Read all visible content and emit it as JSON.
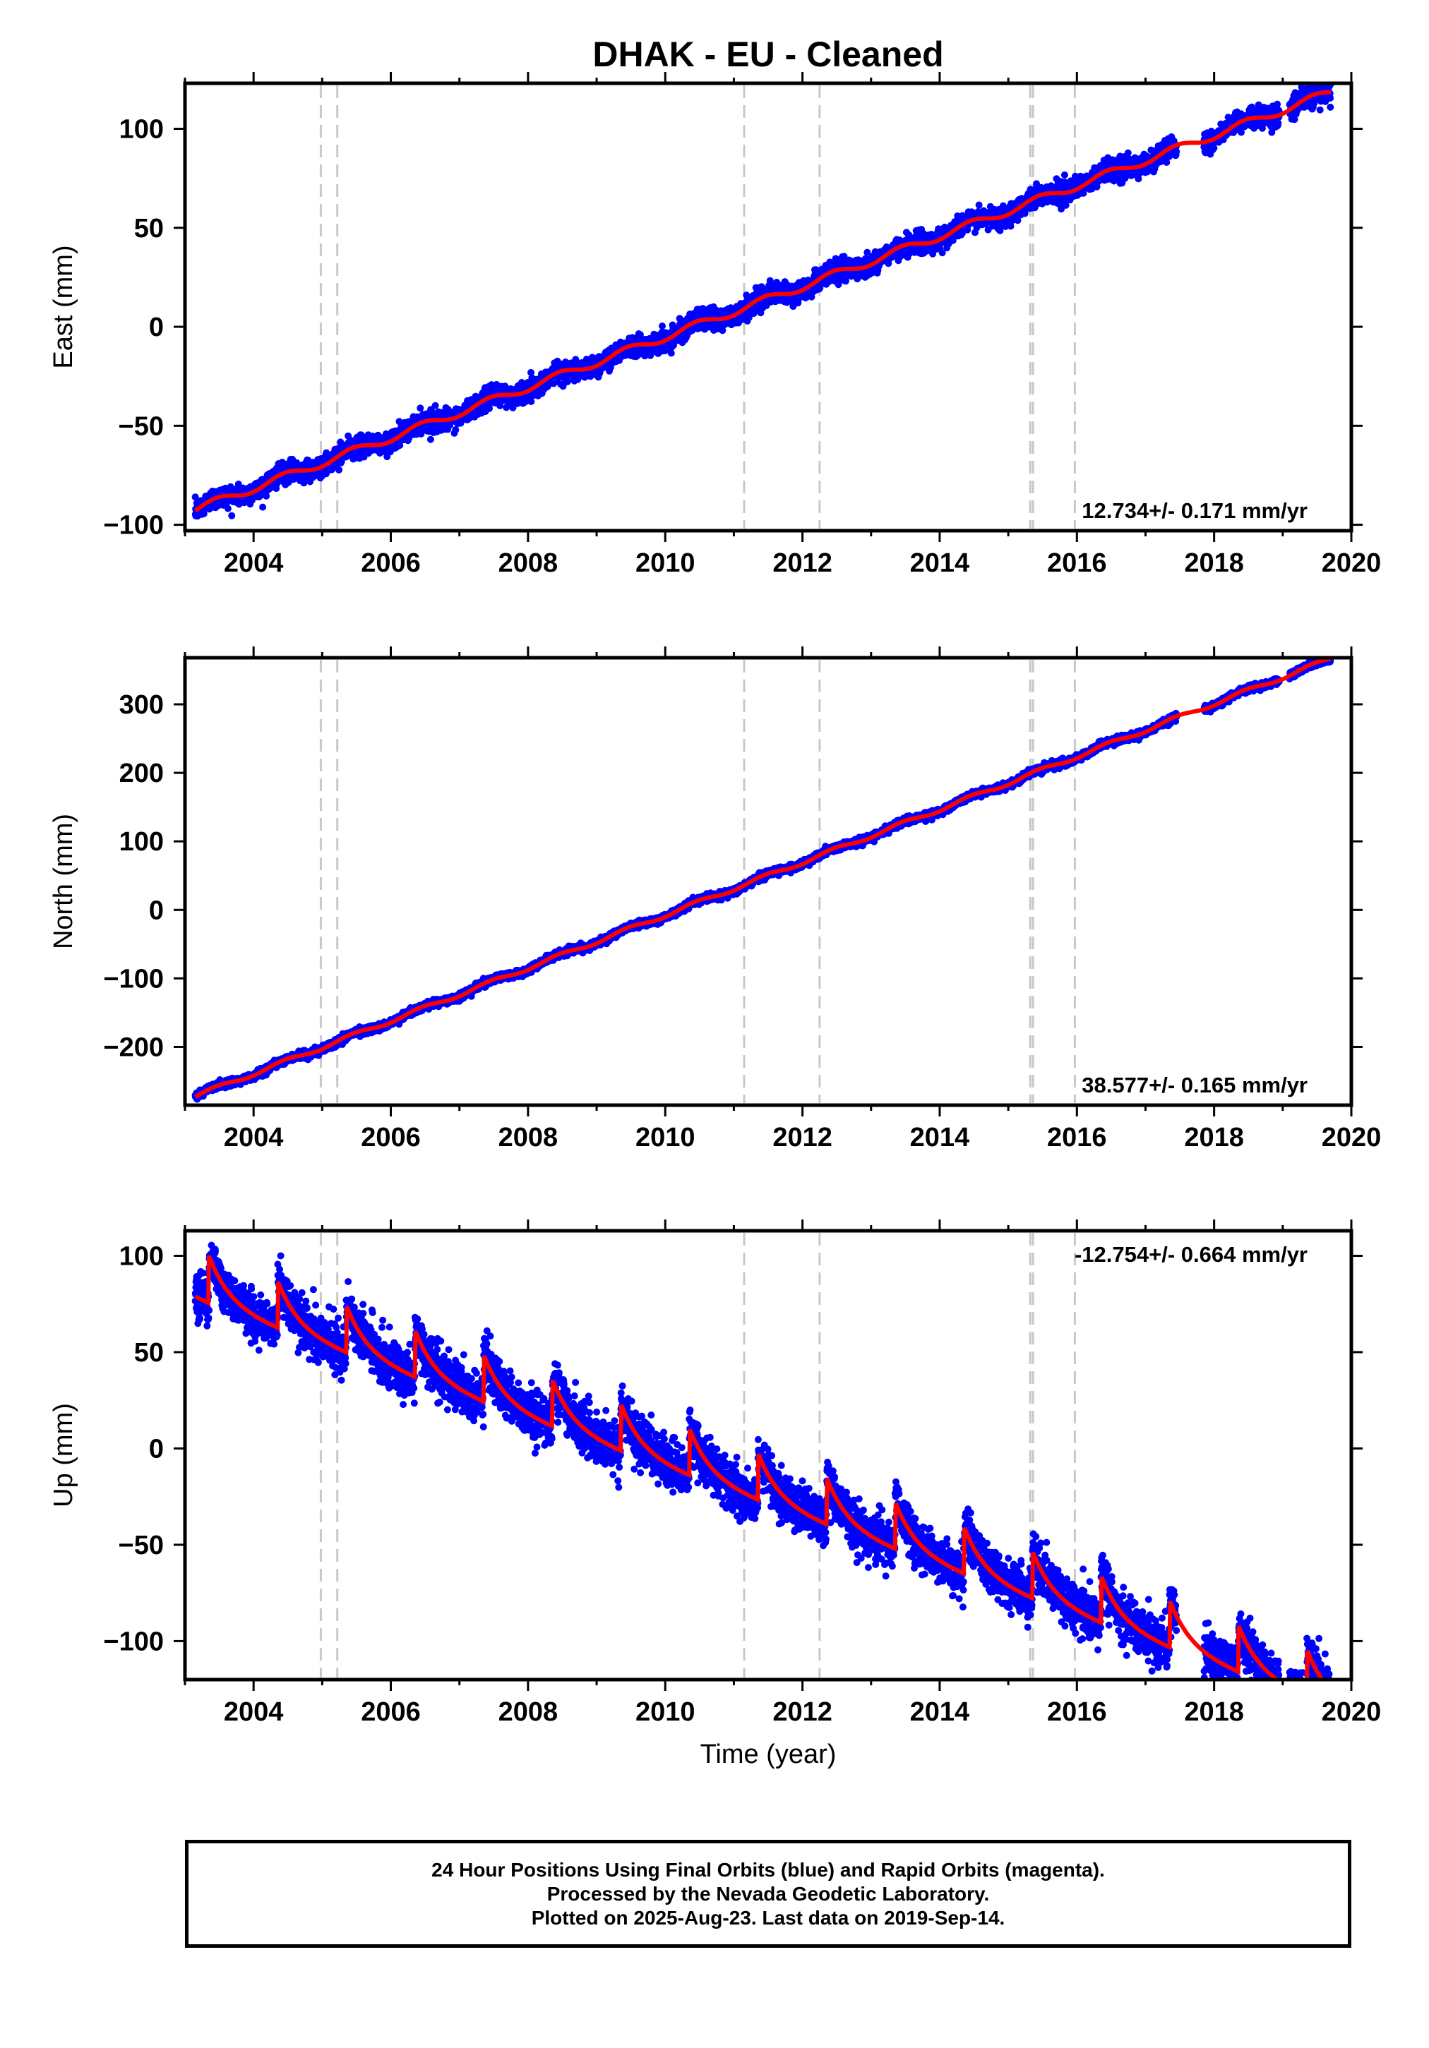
{
  "chart_data": {
    "type": "scatter",
    "title": "DHAK  - EU - Cleaned",
    "xlabel": "Time (year)",
    "xlim": [
      2003.0,
      2020.0
    ],
    "x_ticks": [
      2004,
      2006,
      2008,
      2010,
      2012,
      2014,
      2016,
      2018,
      2020
    ],
    "data_start": 2003.15,
    "data_end": 2019.7,
    "gaps": [
      [
        2017.45,
        2017.85
      ],
      [
        2018.95,
        2019.1
      ]
    ],
    "offsets": [
      2004.98,
      2005.22,
      2011.15,
      2012.25,
      2015.32,
      2015.36,
      2015.97
    ],
    "colors": {
      "points": "#0000ff",
      "model": "#ff0000",
      "offsets": "#c8c8c8"
    },
    "panels": [
      {
        "component": "east",
        "ylabel": "East (mm)",
        "ylim": [
          -103,
          123
        ],
        "y_ticks": [
          -100,
          -50,
          0,
          50,
          100
        ],
        "rate_label": "12.734+/- 0.171 mm/yr",
        "rate_position": "bottom-right",
        "model": {
          "slope": 12.734,
          "ref_year": 2010.4,
          "intercept": 0,
          "seasonal": 2.0,
          "noise": 2.5
        }
      },
      {
        "component": "north",
        "ylabel": "North (mm)",
        "ylim": [
          -285,
          368
        ],
        "y_ticks": [
          -200,
          -100,
          0,
          100,
          200,
          300
        ],
        "rate_label": "38.577+/- 0.165 mm/yr",
        "rate_position": "bottom-right",
        "model": {
          "slope": 38.577,
          "ref_year": 2010.2,
          "intercept": 0,
          "seasonal": 3.0,
          "noise": 2.5
        }
      },
      {
        "component": "up",
        "ylabel": "Up (mm)",
        "ylim": [
          -120,
          113
        ],
        "y_ticks": [
          -100,
          -50,
          0,
          50,
          100
        ],
        "rate_label": "-12.754+/- 0.664 mm/yr",
        "rate_position": "top-right",
        "model": {
          "slope": -12.754,
          "ref_year": 2003.3,
          "intercept": 84,
          "seasonal": 16,
          "noise": 6
        }
      }
    ]
  },
  "footer": {
    "line1": "24 Hour Positions Using Final Orbits (blue) and Rapid Orbits (magenta).",
    "line2": "Processed by the Nevada Geodetic Laboratory.",
    "line3": "Plotted on 2025-Aug-23. Last data on 2019-Sep-14."
  }
}
